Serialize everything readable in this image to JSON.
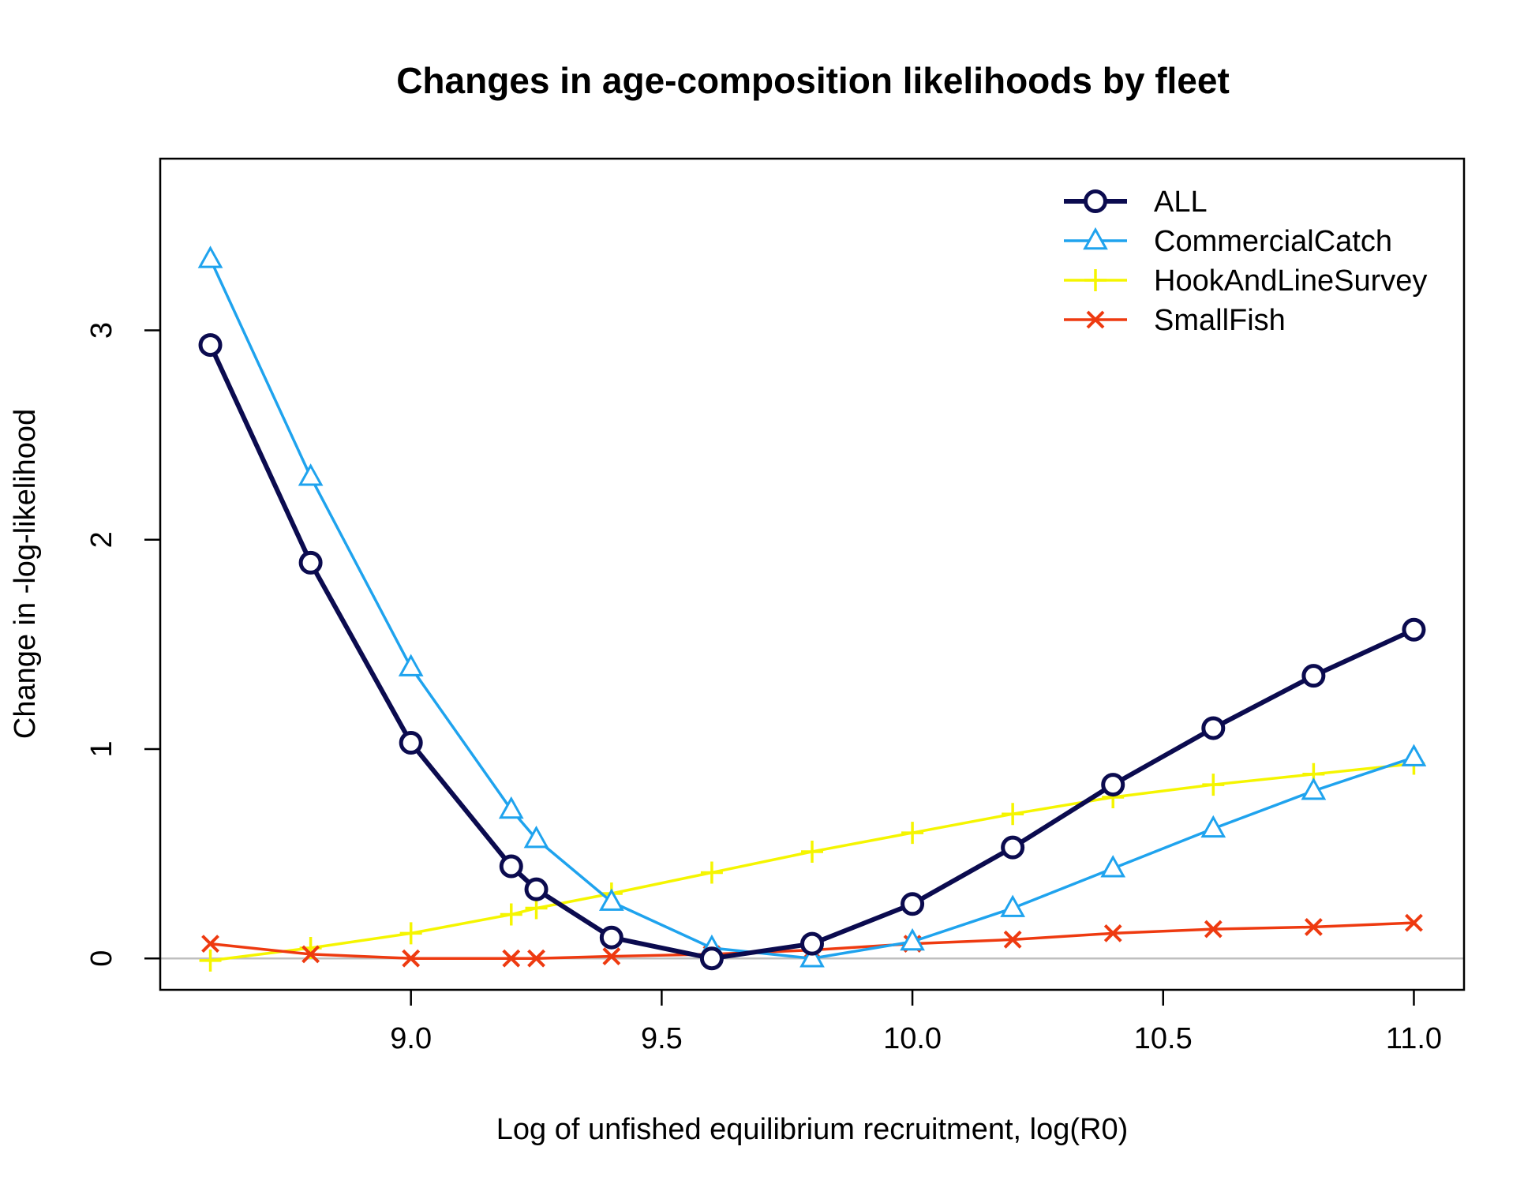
{
  "chart_data": {
    "type": "line",
    "title": "Changes in age-composition likelihoods by fleet",
    "xlabel": "Log of unfished equilibrium recruitment, log(R0)",
    "ylabel": "Change in -log-likelihood",
    "xlim": [
      8.5,
      11.1
    ],
    "ylim": [
      -0.15,
      3.82
    ],
    "x_ticks": [
      9.0,
      9.5,
      10.0,
      10.5,
      11.0
    ],
    "x_tick_labels": [
      "9.0",
      "9.5",
      "10.0",
      "10.5",
      "11.0"
    ],
    "y_ticks": [
      0,
      1,
      2,
      3
    ],
    "y_tick_labels": [
      "0",
      "1",
      "2",
      "3"
    ],
    "reference_line_y": 0,
    "legend_position": "top-right",
    "x": [
      8.6,
      8.8,
      9.0,
      9.2,
      9.25,
      9.4,
      9.6,
      9.8,
      10.0,
      10.2,
      10.4,
      10.6,
      10.8,
      11.0
    ],
    "series": [
      {
        "name": "ALL",
        "color": "#0b0b4f",
        "marker": "circle",
        "values": [
          2.93,
          1.89,
          1.03,
          0.44,
          0.33,
          0.1,
          0.0,
          0.07,
          0.26,
          0.53,
          0.83,
          1.1,
          1.35,
          1.57
        ]
      },
      {
        "name": "CommercialCatch",
        "color": "#1fa3ee",
        "marker": "triangle",
        "values": [
          3.34,
          2.3,
          1.39,
          0.71,
          0.57,
          0.27,
          0.05,
          0.0,
          0.08,
          0.24,
          0.43,
          0.62,
          0.8,
          0.96
        ]
      },
      {
        "name": "HookAndLineSurvey",
        "color": "#f5f500",
        "marker": "plus",
        "values": [
          -0.01,
          0.05,
          0.12,
          0.21,
          0.24,
          0.31,
          0.41,
          0.51,
          0.6,
          0.69,
          0.77,
          0.83,
          0.88,
          0.93
        ]
      },
      {
        "name": "SmallFish",
        "color": "#ee3a10",
        "marker": "cross",
        "values": [
          0.07,
          0.02,
          0.0,
          0.0,
          0.0,
          0.01,
          0.02,
          0.04,
          0.07,
          0.09,
          0.12,
          0.14,
          0.15,
          0.17
        ]
      }
    ]
  }
}
